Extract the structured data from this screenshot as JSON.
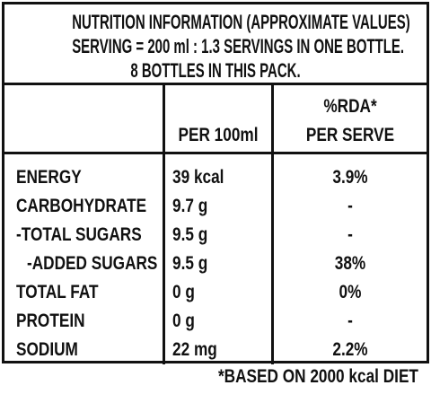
{
  "header": {
    "lines": [
      "NUTRITION INFORMATION (APPROXIMATE VALUES)",
      "SERVING = 200 ml : 1.3 SERVINGS IN ONE BOTTLE.",
      "8 BOTTLES IN THIS PACK."
    ]
  },
  "table": {
    "column_headers": {
      "per_100ml": "PER 100ml",
      "per_serve": [
        "%RDA*",
        "PER SERVE"
      ]
    },
    "rows": [
      [
        "ENERGY",
        "39 kcal",
        "3.9%"
      ],
      [
        "CARBOHYDRATE",
        "9.7 g",
        "-"
      ],
      [
        "-TOTAL SUGARS",
        "9.5 g",
        "-"
      ],
      [
        "-ADDED SUGARS",
        "9.5 g",
        "38%"
      ],
      [
        "TOTAL FAT",
        "0 g",
        "0%"
      ],
      [
        "PROTEIN",
        "0 g",
        "-"
      ],
      [
        "SODIUM",
        "22 mg",
        "2.2%"
      ]
    ]
  },
  "footer": {
    "note": "*BASED ON 2000 kcal DIET"
  }
}
